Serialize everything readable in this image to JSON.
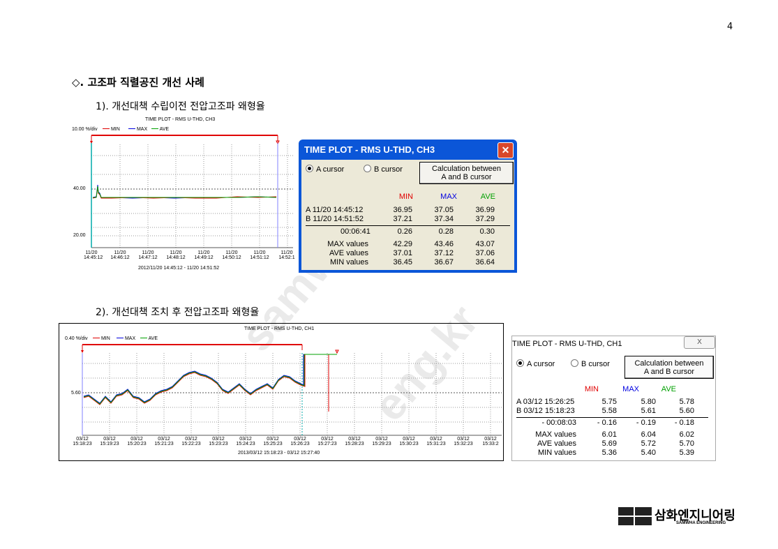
{
  "page_number": "4",
  "section_title": "◇. 고조파 직렬공진 개선 사례",
  "sub1": "1). 개선대책 수립이전 전압고조파 왜형율",
  "sub2": "2). 개선대책 조치 후 전압고조파 왜형율",
  "watermark1": "samwha",
  "watermark2": "eng.kr",
  "legend": {
    "min": "MIN",
    "max": "MAX",
    "ave": "AVE"
  },
  "colors": {
    "min": "#e00000",
    "max": "#0000e0",
    "ave": "#00a000",
    "titlebar": "#0b56d8"
  },
  "plot1": {
    "title": "TIME PLOT - RMS  U-THD, CH3",
    "scale": "10.00 %/div",
    "y_labels": [
      "40.00",
      "20.00"
    ],
    "x_dates": [
      "11/20",
      "11/20",
      "11/20",
      "11/20",
      "11/20",
      "11/20",
      "11/20",
      "11/20"
    ],
    "x_times": [
      "14:45:12",
      "14:46:12",
      "14:47:12",
      "14:48:12",
      "14:49:12",
      "14:50:12",
      "14:51:12",
      "14:52:1"
    ],
    "range": "2012/11/20 14:45:12 - 11/20 14:51:52"
  },
  "dialog1": {
    "title": "TIME PLOT - RMS  U-THD, CH3",
    "radio_a": "A cursor",
    "radio_b": "B cursor",
    "calc_btn_line1": "Calculation between",
    "calc_btn_line2": "A and B cursor",
    "headers": [
      "MIN",
      "MAX",
      "AVE"
    ],
    "rows": [
      {
        "label": "A  11/20 14:45:12",
        "min": "36.95",
        "max": "37.05",
        "ave": "36.99"
      },
      {
        "label": "B  11/20 14:51:52",
        "min": "37.21",
        "max": "37.34",
        "ave": "37.29"
      }
    ],
    "diff": {
      "label": "00:06:41",
      "min": "0.26",
      "max": "0.28",
      "ave": "0.30"
    },
    "stats": [
      {
        "label": "MAX values",
        "min": "42.29",
        "max": "43.46",
        "ave": "43.07"
      },
      {
        "label": "AVE values",
        "min": "37.01",
        "max": "37.12",
        "ave": "37.06"
      },
      {
        "label": "MIN values",
        "min": "36.45",
        "max": "36.67",
        "ave": "36.64"
      }
    ]
  },
  "plot2": {
    "title": "TIME PLOT - RMS  U-THD, CH1",
    "scale": "0.40 %/div",
    "y_labels": [
      "5.60"
    ],
    "x_dates": [
      "03/12",
      "03/12",
      "03/12",
      "03/12",
      "03/12",
      "03/12",
      "03/12",
      "03/12",
      "03/12",
      "03/12",
      "03/12",
      "03/12",
      "03/12",
      "03/12",
      "03/12",
      "03/12"
    ],
    "x_times": [
      "15:18:23",
      "15:19:23",
      "15:20:23",
      "15:21:23",
      "15:22:23",
      "15:23:23",
      "15:24:23",
      "15:25:23",
      "15:26:23",
      "15:27:23",
      "15:28:23",
      "15:29:23",
      "15:30:23",
      "15:31:23",
      "15:32:23",
      "15:33:2"
    ],
    "range": "2013/03/12 15:18:23 - 03/12 15:27:40"
  },
  "dialog2": {
    "title": "TIME PLOT - RMS  U-THD, CH1",
    "close_label": "X",
    "radio_a": "A cursor",
    "radio_b": "B cursor",
    "calc_btn_line1": "Calculation between",
    "calc_btn_line2": "A and B cursor",
    "headers": [
      "MIN",
      "MAX",
      "AVE"
    ],
    "rows": [
      {
        "label": "A  03/12 15:26:25",
        "min": "5.75",
        "max": "5.80",
        "ave": "5.78"
      },
      {
        "label": "B  03/12 15:18:23",
        "min": "5.58",
        "max": "5.61",
        "ave": "5.60"
      }
    ],
    "diff": {
      "label": "- 00:08:03",
      "min": "- 0.16",
      "max": "- 0.19",
      "ave": "- 0.18"
    },
    "stats": [
      {
        "label": "MAX values",
        "min": "6.01",
        "max": "6.04",
        "ave": "6.02"
      },
      {
        "label": "AVE values",
        "min": "5.69",
        "max": "5.72",
        "ave": "5.70"
      },
      {
        "label": "MIN values",
        "min": "5.36",
        "max": "5.40",
        "ave": "5.39"
      }
    ]
  },
  "logo": {
    "korean": "삼화엔지니어링",
    "english": "SAMWHA ENGINEERING"
  }
}
